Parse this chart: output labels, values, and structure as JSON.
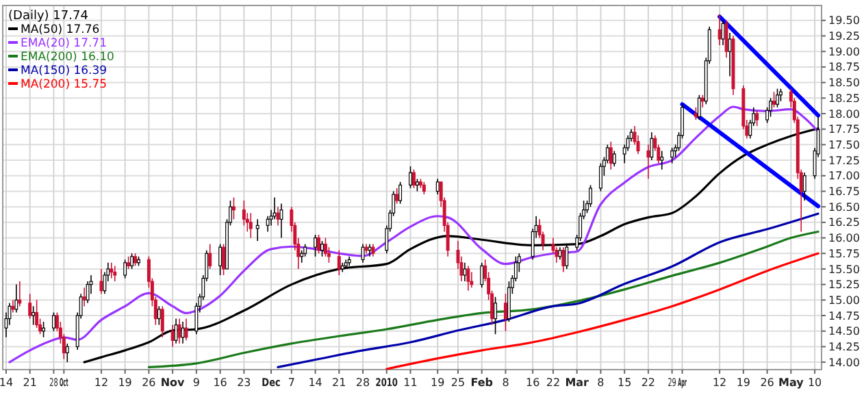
{
  "chart_data": {
    "type": "candlestick",
    "title": "(Daily) 17.74",
    "x": [
      "2009-09-14",
      "2009-09-15",
      "2009-09-16",
      "2009-09-17",
      "2009-09-18",
      "2009-09-21",
      "2009-09-22",
      "2009-09-23",
      "2009-09-24",
      "2009-09-25",
      "2009-09-28",
      "2009-09-29",
      "2009-09-30",
      "2009-10-01",
      "2009-10-02",
      "2009-10-05",
      "2009-10-06",
      "2009-10-07",
      "2009-10-08",
      "2009-10-09",
      "2009-10-12",
      "2009-10-13",
      "2009-10-14",
      "2009-10-15",
      "2009-10-16",
      "2009-10-19",
      "2009-10-20",
      "2009-10-21",
      "2009-10-22",
      "2009-10-23",
      "2009-10-26",
      "2009-10-27",
      "2009-10-28",
      "2009-10-29",
      "2009-10-30",
      "2009-11-02",
      "2009-11-03",
      "2009-11-04",
      "2009-11-05",
      "2009-11-06",
      "2009-11-09",
      "2009-11-10",
      "2009-11-11",
      "2009-11-12",
      "2009-11-13",
      "2009-11-16",
      "2009-11-17",
      "2009-11-18",
      "2009-11-19",
      "2009-11-20",
      "2009-11-23",
      "2009-11-24",
      "2009-11-25",
      "2009-11-27",
      "2009-11-30",
      "2009-12-01",
      "2009-12-02",
      "2009-12-03",
      "2009-12-04",
      "2009-12-07",
      "2009-12-08",
      "2009-12-09",
      "2009-12-10",
      "2009-12-11",
      "2009-12-14",
      "2009-12-15",
      "2009-12-16",
      "2009-12-17",
      "2009-12-18",
      "2009-12-21",
      "2009-12-22",
      "2009-12-23",
      "2009-12-24",
      "2009-12-28",
      "2009-12-29",
      "2009-12-30",
      "2009-12-31",
      "2010-01-04",
      "2010-01-05",
      "2010-01-06",
      "2010-01-07",
      "2010-01-08",
      "2010-01-11",
      "2010-01-12",
      "2010-01-13",
      "2010-01-14",
      "2010-01-15",
      "2010-01-19",
      "2010-01-20",
      "2010-01-21",
      "2010-01-22",
      "2010-01-25",
      "2010-01-26",
      "2010-01-27",
      "2010-01-28",
      "2010-01-29",
      "2010-02-01",
      "2010-02-02",
      "2010-02-03",
      "2010-02-04",
      "2010-02-05",
      "2010-02-08",
      "2010-02-09",
      "2010-02-10",
      "2010-02-11",
      "2010-02-12",
      "2010-02-16",
      "2010-02-17",
      "2010-02-18",
      "2010-02-19",
      "2010-02-22",
      "2010-02-23",
      "2010-02-24",
      "2010-02-25",
      "2010-02-26",
      "2010-03-01",
      "2010-03-02",
      "2010-03-03",
      "2010-03-04",
      "2010-03-05",
      "2010-03-08",
      "2010-03-09",
      "2010-03-10",
      "2010-03-11",
      "2010-03-12",
      "2010-03-15",
      "2010-03-16",
      "2010-03-17",
      "2010-03-18",
      "2010-03-19",
      "2010-03-22",
      "2010-03-23",
      "2010-03-24",
      "2010-03-25",
      "2010-03-26",
      "2010-03-29",
      "2010-03-30",
      "2010-03-31",
      "2010-04-01",
      "2010-04-05",
      "2010-04-06",
      "2010-04-07",
      "2010-04-08",
      "2010-04-09",
      "2010-04-12",
      "2010-04-13",
      "2010-04-14",
      "2010-04-15",
      "2010-04-16",
      "2010-04-19",
      "2010-04-20",
      "2010-04-21",
      "2010-04-22",
      "2010-04-23",
      "2010-04-26",
      "2010-04-27",
      "2010-04-28",
      "2010-04-29",
      "2010-04-30",
      "2010-05-03",
      "2010-05-04",
      "2010-05-05",
      "2010-05-06",
      "2010-05-07",
      "2010-05-10",
      "2010-05-11"
    ],
    "ohlc": [
      [
        14.55,
        14.8,
        14.4,
        14.7
      ],
      [
        14.7,
        14.95,
        14.6,
        14.9
      ],
      [
        14.9,
        15.0,
        14.8,
        14.85
      ],
      [
        14.85,
        15.25,
        14.8,
        15.0
      ],
      [
        15.0,
        15.3,
        14.9,
        14.95
      ],
      [
        14.95,
        15.1,
        14.7,
        14.75
      ],
      [
        14.75,
        14.9,
        14.6,
        14.8
      ],
      [
        14.8,
        15.0,
        14.55,
        14.6
      ],
      [
        14.6,
        14.7,
        14.45,
        14.5
      ],
      [
        14.5,
        14.65,
        14.4,
        14.55
      ],
      [
        14.55,
        14.8,
        14.5,
        14.75
      ],
      [
        14.75,
        14.8,
        14.5,
        14.55
      ],
      [
        14.55,
        14.65,
        14.3,
        14.4
      ],
      [
        14.4,
        14.45,
        14.05,
        14.15
      ],
      [
        14.15,
        14.3,
        14.0,
        14.25
      ],
      [
        14.25,
        14.8,
        14.2,
        14.75
      ],
      [
        14.75,
        15.1,
        14.7,
        15.05
      ],
      [
        15.05,
        15.2,
        14.9,
        15.0
      ],
      [
        15.0,
        15.3,
        14.95,
        15.25
      ],
      [
        15.25,
        15.4,
        15.1,
        15.3
      ],
      [
        15.3,
        15.5,
        15.1,
        15.15
      ],
      [
        15.15,
        15.45,
        15.1,
        15.4
      ],
      [
        15.4,
        15.6,
        15.3,
        15.5
      ],
      [
        15.5,
        15.6,
        15.35,
        15.45
      ],
      [
        15.45,
        15.55,
        15.3,
        15.4
      ],
      [
        15.4,
        15.65,
        15.35,
        15.6
      ],
      [
        15.6,
        15.7,
        15.5,
        15.55
      ],
      [
        15.55,
        15.75,
        15.5,
        15.7
      ],
      [
        15.7,
        15.75,
        15.55,
        15.6
      ],
      [
        15.6,
        15.7,
        15.55,
        15.65
      ],
      [
        15.65,
        15.7,
        15.2,
        15.3
      ],
      [
        15.3,
        15.35,
        14.9,
        15.0
      ],
      [
        15.0,
        15.05,
        14.6,
        14.7
      ],
      [
        14.7,
        14.9,
        14.6,
        14.85
      ],
      [
        14.85,
        14.9,
        14.4,
        14.5
      ],
      [
        14.5,
        14.6,
        14.25,
        14.35
      ],
      [
        14.35,
        14.7,
        14.3,
        14.6
      ],
      [
        14.6,
        14.7,
        14.3,
        14.4
      ],
      [
        14.4,
        14.65,
        14.3,
        14.55
      ],
      [
        14.55,
        14.7,
        14.35,
        14.4
      ],
      [
        14.5,
        14.95,
        14.45,
        14.9
      ],
      [
        14.9,
        15.1,
        14.8,
        15.05
      ],
      [
        15.05,
        15.4,
        15.0,
        15.35
      ],
      [
        15.35,
        15.8,
        15.3,
        15.75
      ],
      [
        15.75,
        15.9,
        15.5,
        15.55
      ],
      [
        15.55,
        15.9,
        15.4,
        15.85
      ],
      [
        15.85,
        15.9,
        15.4,
        15.5
      ],
      [
        15.5,
        16.3,
        15.5,
        16.25
      ],
      [
        16.25,
        16.6,
        16.2,
        16.5
      ],
      [
        16.5,
        16.65,
        16.3,
        16.45
      ],
      [
        16.45,
        16.6,
        16.2,
        16.3
      ],
      [
        16.3,
        16.4,
        16.1,
        16.25
      ],
      [
        16.25,
        16.4,
        16.0,
        16.15
      ],
      [
        16.15,
        16.3,
        15.95,
        16.2
      ],
      [
        16.2,
        16.35,
        16.1,
        16.3
      ],
      [
        16.3,
        16.45,
        16.2,
        16.35
      ],
      [
        16.35,
        16.65,
        16.3,
        16.4
      ],
      [
        16.4,
        16.5,
        16.2,
        16.3
      ],
      [
        16.3,
        16.55,
        16.0,
        16.45
      ],
      [
        16.45,
        16.5,
        16.1,
        16.2
      ],
      [
        16.2,
        16.25,
        15.8,
        15.9
      ],
      [
        15.9,
        16.0,
        15.5,
        15.7
      ],
      [
        15.7,
        15.8,
        15.6,
        15.75
      ],
      [
        15.75,
        15.9,
        15.7,
        15.85
      ],
      [
        15.85,
        16.05,
        15.7,
        16.0
      ],
      [
        16.0,
        16.05,
        15.75,
        15.8
      ],
      [
        15.8,
        15.95,
        15.7,
        15.9
      ],
      [
        15.9,
        16.0,
        15.7,
        15.75
      ],
      [
        15.75,
        15.85,
        15.6,
        15.7
      ],
      [
        15.7,
        15.8,
        15.4,
        15.5
      ],
      [
        15.5,
        15.6,
        15.45,
        15.55
      ],
      [
        15.55,
        15.65,
        15.5,
        15.6
      ],
      [
        15.6,
        15.7,
        15.55,
        15.65
      ],
      [
        15.65,
        15.9,
        15.6,
        15.85
      ],
      [
        15.85,
        15.9,
        15.75,
        15.8
      ],
      [
        15.8,
        15.9,
        15.7,
        15.85
      ],
      [
        15.85,
        15.9,
        15.7,
        15.75
      ],
      [
        15.8,
        16.2,
        15.75,
        16.15
      ],
      [
        16.15,
        16.45,
        16.1,
        16.4
      ],
      [
        16.4,
        16.75,
        16.35,
        16.7
      ],
      [
        16.7,
        16.8,
        16.55,
        16.6
      ],
      [
        16.6,
        16.9,
        16.55,
        16.85
      ],
      [
        16.85,
        17.15,
        16.8,
        17.05
      ],
      [
        17.05,
        17.1,
        16.8,
        16.85
      ],
      [
        16.85,
        16.95,
        16.75,
        16.9
      ],
      [
        16.9,
        16.95,
        16.8,
        16.85
      ],
      [
        16.85,
        16.9,
        16.7,
        16.75
      ],
      [
        16.75,
        16.95,
        16.7,
        16.9
      ],
      [
        16.9,
        16.9,
        16.5,
        16.6
      ],
      [
        16.6,
        16.65,
        16.1,
        16.2
      ],
      [
        16.2,
        16.25,
        15.7,
        15.8
      ],
      [
        15.8,
        15.95,
        15.5,
        15.6
      ],
      [
        15.6,
        15.7,
        15.3,
        15.4
      ],
      [
        15.4,
        15.6,
        15.3,
        15.5
      ],
      [
        15.5,
        15.55,
        15.15,
        15.3
      ],
      [
        15.3,
        15.45,
        15.2,
        15.25
      ],
      [
        15.25,
        15.6,
        15.2,
        15.55
      ],
      [
        15.55,
        15.65,
        15.3,
        15.35
      ],
      [
        15.35,
        15.45,
        15.0,
        15.1
      ],
      [
        15.1,
        15.15,
        14.6,
        14.7
      ],
      [
        14.7,
        15.05,
        14.45,
        14.95
      ],
      [
        14.95,
        15.1,
        14.5,
        14.7
      ],
      [
        14.7,
        15.3,
        14.65,
        15.2
      ],
      [
        15.2,
        15.4,
        15.1,
        15.35
      ],
      [
        15.35,
        15.7,
        15.3,
        15.6
      ],
      [
        15.6,
        15.75,
        15.45,
        15.7
      ],
      [
        15.7,
        16.15,
        15.65,
        16.1
      ],
      [
        16.1,
        16.35,
        16.0,
        16.2
      ],
      [
        16.2,
        16.3,
        16.0,
        16.05
      ],
      [
        16.05,
        16.1,
        15.8,
        15.9
      ],
      [
        15.9,
        16.0,
        15.75,
        15.8
      ],
      [
        15.8,
        15.85,
        15.6,
        15.7
      ],
      [
        15.7,
        15.85,
        15.65,
        15.8
      ],
      [
        15.8,
        15.85,
        15.45,
        15.55
      ],
      [
        15.55,
        15.9,
        15.5,
        15.85
      ],
      [
        15.85,
        16.05,
        15.8,
        16.0
      ],
      [
        16.0,
        16.4,
        15.95,
        16.35
      ],
      [
        16.35,
        16.6,
        16.3,
        16.45
      ],
      [
        16.45,
        16.6,
        16.4,
        16.55
      ],
      [
        16.55,
        16.85,
        16.5,
        16.8
      ],
      [
        16.8,
        17.2,
        16.75,
        17.15
      ],
      [
        17.15,
        17.3,
        17.0,
        17.25
      ],
      [
        17.25,
        17.5,
        17.2,
        17.45
      ],
      [
        17.45,
        17.55,
        17.1,
        17.2
      ],
      [
        17.2,
        17.4,
        17.15,
        17.35
      ],
      [
        17.35,
        17.5,
        17.2,
        17.45
      ],
      [
        17.45,
        17.65,
        17.4,
        17.6
      ],
      [
        17.6,
        17.75,
        17.55,
        17.7
      ],
      [
        17.7,
        17.8,
        17.5,
        17.55
      ],
      [
        17.55,
        17.65,
        17.35,
        17.4
      ],
      [
        17.4,
        17.5,
        16.95,
        17.3
      ],
      [
        17.3,
        17.7,
        17.25,
        17.6
      ],
      [
        17.6,
        17.65,
        17.4,
        17.45
      ],
      [
        17.45,
        17.5,
        17.2,
        17.25
      ],
      [
        17.25,
        17.4,
        17.1,
        17.3
      ],
      [
        17.3,
        17.45,
        17.2,
        17.4
      ],
      [
        17.4,
        17.5,
        17.3,
        17.45
      ],
      [
        17.45,
        17.7,
        17.4,
        17.65
      ],
      [
        17.65,
        18.15,
        17.6,
        18.1
      ],
      [
        18.0,
        18.1,
        17.9,
        17.95
      ],
      [
        17.95,
        18.3,
        17.9,
        18.25
      ],
      [
        18.25,
        18.3,
        18.1,
        18.2
      ],
      [
        18.2,
        18.9,
        18.15,
        18.85
      ],
      [
        18.85,
        19.4,
        18.8,
        19.35
      ],
      [
        19.35,
        19.6,
        19.1,
        19.2
      ],
      [
        19.2,
        19.5,
        19.1,
        19.45
      ],
      [
        19.45,
        19.5,
        18.9,
        19.0
      ],
      [
        19.0,
        19.3,
        18.6,
        19.2
      ],
      [
        19.2,
        19.25,
        18.3,
        18.4
      ],
      [
        18.4,
        18.45,
        17.75,
        17.8
      ],
      [
        17.8,
        17.9,
        17.6,
        17.65
      ],
      [
        17.65,
        17.9,
        17.6,
        17.85
      ],
      [
        17.85,
        18.1,
        17.8,
        18.0
      ],
      [
        18.0,
        18.05,
        17.8,
        17.9
      ],
      [
        17.9,
        18.1,
        17.85,
        18.05
      ],
      [
        18.05,
        18.25,
        17.95,
        18.2
      ],
      [
        18.2,
        18.35,
        18.1,
        18.15
      ],
      [
        18.15,
        18.4,
        18.1,
        18.3
      ],
      [
        18.3,
        18.4,
        18.2,
        18.35
      ],
      [
        18.35,
        18.4,
        18.1,
        18.2
      ],
      [
        18.2,
        18.25,
        17.85,
        17.9
      ],
      [
        17.9,
        17.95,
        16.95,
        17.05
      ],
      [
        17.05,
        17.1,
        16.1,
        16.75
      ],
      [
        16.75,
        17.05,
        16.6,
        17.0
      ],
      [
        17.0,
        17.45,
        16.95,
        17.4
      ],
      [
        17.35,
        17.95,
        17.3,
        17.74
      ]
    ],
    "series": [
      {
        "name": "MA(50) 17.76",
        "type": "line",
        "color": "#000000",
        "x": [
          "2009-10-07",
          "2009-10-12",
          "2009-10-19",
          "2009-10-26",
          "2009-11-02",
          "2009-11-09",
          "2009-11-23",
          "2009-12-07",
          "2009-12-21",
          "2010-01-04",
          "2010-01-11",
          "2010-01-22",
          "2010-02-01",
          "2010-02-16",
          "2010-03-01",
          "2010-03-08",
          "2010-03-15",
          "2010-03-22",
          "2010-03-29",
          "2010-04-05",
          "2010-04-12",
          "2010-04-19",
          "2010-04-26",
          "2010-05-03",
          "2010-05-11"
        ],
        "values": [
          14.0,
          14.08,
          14.19,
          14.32,
          14.51,
          14.53,
          14.83,
          15.25,
          15.5,
          15.58,
          15.82,
          16.03,
          15.97,
          15.88,
          15.9,
          16.03,
          16.22,
          16.33,
          16.4,
          16.67,
          17.04,
          17.32,
          17.5,
          17.64,
          17.76
        ]
      },
      {
        "name": "EMA(20) 17.71",
        "type": "line",
        "color": "#9933ff",
        "x": [
          "2009-09-15",
          "2009-09-21",
          "2009-09-28",
          "2009-10-01",
          "2009-10-05",
          "2009-10-12",
          "2009-10-19",
          "2009-10-26",
          "2009-11-02",
          "2009-11-06",
          "2009-11-09",
          "2009-11-16",
          "2009-11-23",
          "2009-12-01",
          "2009-12-07",
          "2009-12-14",
          "2009-12-21",
          "2009-12-28",
          "2010-01-04",
          "2010-01-11",
          "2010-01-19",
          "2010-01-22",
          "2010-02-01",
          "2010-02-08",
          "2010-02-16",
          "2010-02-22",
          "2010-03-01",
          "2010-03-08",
          "2010-03-15",
          "2010-03-22",
          "2010-03-29",
          "2010-04-05",
          "2010-04-12",
          "2010-04-16",
          "2010-04-19",
          "2010-04-26",
          "2010-05-03",
          "2010-05-07",
          "2010-05-11"
        ],
        "values": [
          14.0,
          14.19,
          14.36,
          14.4,
          14.36,
          14.68,
          14.9,
          15.11,
          14.9,
          14.79,
          14.83,
          15.07,
          15.47,
          15.82,
          15.86,
          15.82,
          15.75,
          15.71,
          15.93,
          16.18,
          16.35,
          16.33,
          15.82,
          15.58,
          15.69,
          15.75,
          15.78,
          16.54,
          16.89,
          17.14,
          17.25,
          17.61,
          17.96,
          18.11,
          18.07,
          18.04,
          18.07,
          17.93,
          17.71
        ]
      },
      {
        "name": "EMA(200) 16.10",
        "type": "line",
        "color": "#1a7a1a",
        "x": [
          "2009-10-26",
          "2009-11-09",
          "2009-11-23",
          "2009-12-07",
          "2009-12-21",
          "2010-01-04",
          "2010-01-19",
          "2010-02-01",
          "2010-02-16",
          "2010-03-01",
          "2010-03-15",
          "2010-03-29",
          "2010-04-12",
          "2010-04-26",
          "2010-05-03",
          "2010-05-11"
        ],
        "values": [
          13.92,
          13.98,
          14.15,
          14.3,
          14.42,
          14.53,
          14.68,
          14.79,
          14.85,
          14.98,
          15.17,
          15.39,
          15.6,
          15.86,
          16.0,
          16.1
        ]
      },
      {
        "name": "MA(150) 16.39",
        "type": "line",
        "color": "#0000aa",
        "x": [
          "2009-12-03",
          "2009-12-14",
          "2009-12-28",
          "2010-01-11",
          "2010-01-25",
          "2010-02-08",
          "2010-02-22",
          "2010-03-01",
          "2010-03-15",
          "2010-03-29",
          "2010-04-12",
          "2010-04-26",
          "2010-05-11"
        ],
        "values": [
          13.92,
          14.04,
          14.19,
          14.32,
          14.51,
          14.68,
          14.9,
          14.94,
          15.26,
          15.54,
          15.93,
          16.14,
          16.39
        ]
      },
      {
        "name": "MA(200) 15.75",
        "type": "line",
        "color": "#ff0000",
        "x": [
          "2010-01-04",
          "2010-01-19",
          "2010-02-01",
          "2010-02-16",
          "2010-03-01",
          "2010-03-15",
          "2010-03-29",
          "2010-04-12",
          "2010-04-26",
          "2010-05-11"
        ],
        "values": [
          13.89,
          14.06,
          14.19,
          14.32,
          14.48,
          14.68,
          14.9,
          15.17,
          15.47,
          15.75
        ]
      },
      {
        "type": "line",
        "color": "#0000ff",
        "x": [
          "2010-04-12",
          "2010-05-11"
        ],
        "values": [
          19.56,
          17.97
        ]
      },
      {
        "type": "line",
        "color": "#0000ff",
        "x": [
          "2010-04-01",
          "2010-05-11"
        ],
        "values": [
          18.15,
          16.51
        ]
      }
    ],
    "xlim": [
      "2009-09-13",
      "2010-05-12"
    ],
    "xticks": [
      {
        "value": "2009-09-14",
        "label": "14"
      },
      {
        "value": "2009-09-21",
        "label": "21"
      },
      {
        "value": "2009-09-28",
        "label": "28"
      },
      {
        "value": "2009-10-01",
        "label": "Oct"
      },
      {
        "value": "2009-10-12",
        "label": "12"
      },
      {
        "value": "2009-10-19",
        "label": "19"
      },
      {
        "value": "2009-10-26",
        "label": "26"
      },
      {
        "value": "2009-11-02",
        "label": "Nov"
      },
      {
        "value": "2009-11-09",
        "label": "9"
      },
      {
        "value": "2009-11-16",
        "label": "16"
      },
      {
        "value": "2009-11-23",
        "label": "23"
      },
      {
        "value": "2009-12-01",
        "label": "Dec"
      },
      {
        "value": "2009-12-07",
        "label": "7"
      },
      {
        "value": "2009-12-14",
        "label": "14"
      },
      {
        "value": "2009-12-21",
        "label": "21"
      },
      {
        "value": "2009-12-28",
        "label": "28"
      },
      {
        "value": "2010-01-04",
        "label": "2010"
      },
      {
        "value": "2010-01-11",
        "label": "11"
      },
      {
        "value": "2010-01-19",
        "label": "19"
      },
      {
        "value": "2010-01-25",
        "label": "25"
      },
      {
        "value": "2010-02-01",
        "label": "Feb"
      },
      {
        "value": "2010-02-08",
        "label": "8"
      },
      {
        "value": "2010-02-16",
        "label": "16"
      },
      {
        "value": "2010-02-22",
        "label": "22"
      },
      {
        "value": "2010-03-01",
        "label": "Mar"
      },
      {
        "value": "2010-03-08",
        "label": "8"
      },
      {
        "value": "2010-03-15",
        "label": "15"
      },
      {
        "value": "2010-03-22",
        "label": "22"
      },
      {
        "value": "2010-03-29",
        "label": "29"
      },
      {
        "value": "2010-04-01",
        "label": "Apr"
      },
      {
        "value": "2010-04-12",
        "label": "12"
      },
      {
        "value": "2010-04-19",
        "label": "19"
      },
      {
        "value": "2010-04-26",
        "label": "26"
      },
      {
        "value": "2010-05-03",
        "label": "May"
      },
      {
        "value": "2010-05-10",
        "label": "10"
      }
    ],
    "ylim": [
      13.88,
      19.74
    ],
    "yticks": [
      {
        "value": 14,
        "label": "14.00"
      },
      {
        "value": 14.25,
        "label": "14.25"
      },
      {
        "value": 14.5,
        "label": "14.50"
      },
      {
        "value": 14.75,
        "label": "14.75"
      },
      {
        "value": 15,
        "label": "15.00"
      },
      {
        "value": 15.25,
        "label": "15.25"
      },
      {
        "value": 15.5,
        "label": "15.50"
      },
      {
        "value": 15.75,
        "label": "15.75"
      },
      {
        "value": 16,
        "label": "16.00"
      },
      {
        "value": 16.25,
        "label": "16.25"
      },
      {
        "value": 16.5,
        "label": "16.50"
      },
      {
        "value": 16.75,
        "label": "16.75"
      },
      {
        "value": 17,
        "label": "17.00"
      },
      {
        "value": 17.25,
        "label": "17.25"
      },
      {
        "value": 17.5,
        "label": "17.50"
      },
      {
        "value": 17.75,
        "label": "17.75"
      },
      {
        "value": 18,
        "label": "18.00"
      },
      {
        "value": 18.25,
        "label": "18.25"
      },
      {
        "value": 18.5,
        "label": "18.50"
      },
      {
        "value": 18.75,
        "label": "18.75"
      },
      {
        "value": 19,
        "label": "19.00"
      },
      {
        "value": 19.25,
        "label": "19.25"
      },
      {
        "value": 19.5,
        "label": "19.50"
      }
    ],
    "grid": true,
    "legend": "top left"
  }
}
